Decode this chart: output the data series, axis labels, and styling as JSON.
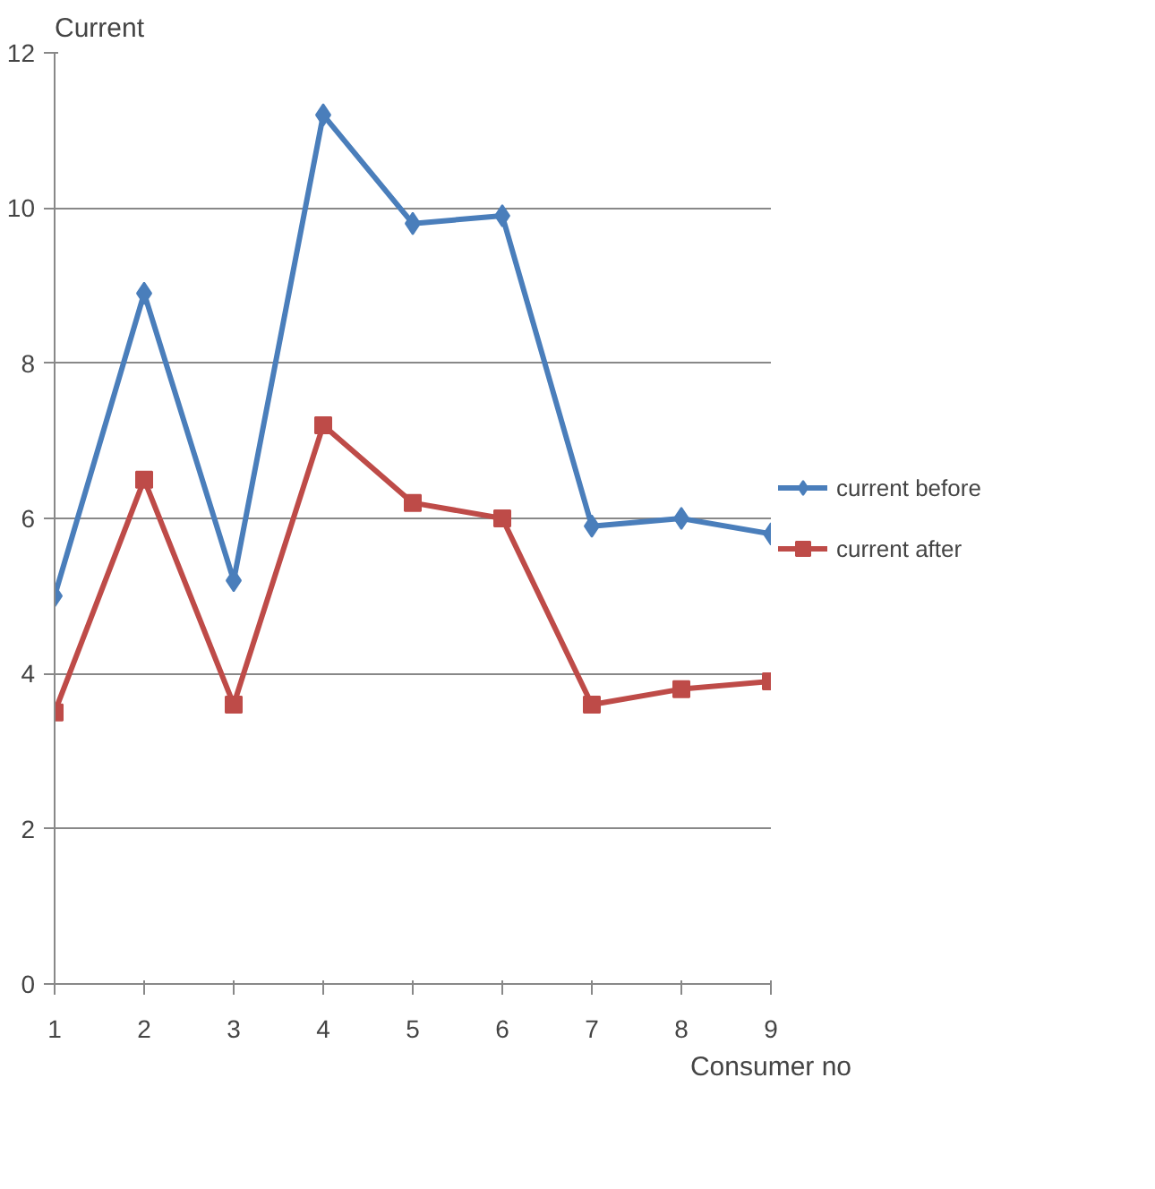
{
  "chart_data": {
    "type": "line",
    "xlabel": "Consumer no",
    "ylabel": "Current",
    "x": [
      1,
      2,
      3,
      4,
      5,
      6,
      7,
      8,
      9
    ],
    "series": [
      {
        "name": "current before",
        "color": "#4a7ebb",
        "marker": "diamond",
        "values": [
          5.0,
          8.9,
          5.2,
          11.2,
          9.8,
          9.9,
          5.9,
          6.0,
          5.8
        ]
      },
      {
        "name": "current after",
        "color": "#be4b48",
        "marker": "square",
        "values": [
          3.5,
          6.5,
          3.6,
          7.2,
          6.2,
          6.0,
          3.6,
          3.8,
          3.9
        ]
      }
    ],
    "xlim": [
      1,
      9
    ],
    "xticks": [
      1,
      2,
      3,
      4,
      5,
      6,
      7,
      8,
      9
    ],
    "ylim": [
      0,
      12
    ],
    "yticks": [
      0,
      2,
      4,
      6,
      8,
      10,
      12
    ],
    "grid": "y",
    "legend": "right",
    "line_style": "solid"
  }
}
